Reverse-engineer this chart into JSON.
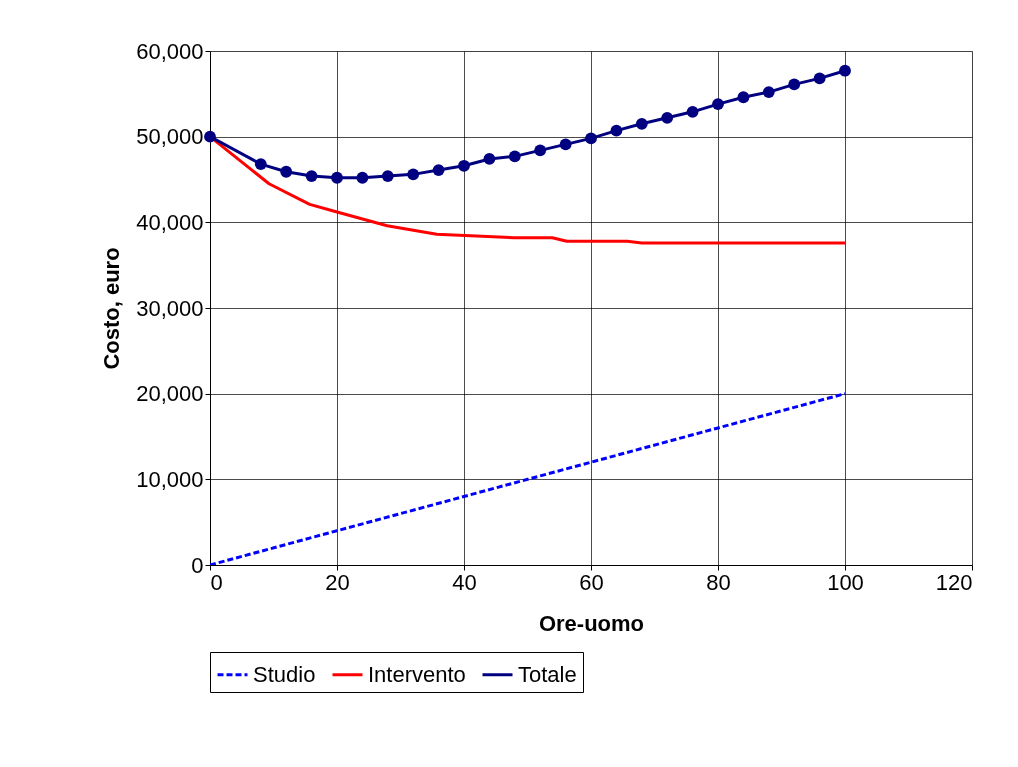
{
  "chart_data": {
    "type": "line",
    "xlabel": "Ore-uomo",
    "ylabel": "Costo, euro",
    "xlim": [
      0,
      120
    ],
    "xticks": [
      0,
      20,
      40,
      60,
      80,
      100,
      120
    ],
    "ylim": [
      0,
      60000
    ],
    "yticks": [
      {
        "value": 0,
        "label": "0"
      },
      {
        "value": 10000,
        "label": "10,000"
      },
      {
        "value": 20000,
        "label": "20,000"
      },
      {
        "value": 30000,
        "label": "30,000"
      },
      {
        "value": 40000,
        "label": "40,000"
      },
      {
        "value": 50000,
        "label": "50,000"
      },
      {
        "value": 60000,
        "label": "60,000"
      }
    ],
    "grid": true,
    "legend": "bottom",
    "series": [
      {
        "name": "Studio",
        "color": "#0000ff",
        "line_style": "dashed",
        "marker": "none",
        "x": [
          0,
          20,
          40,
          60,
          80,
          100
        ],
        "values": [
          0,
          4000,
          8000,
          12000,
          16000,
          20000
        ]
      },
      {
        "name": "Intervento",
        "color": "#ff0000",
        "line_style": "solid",
        "marker": "none",
        "x": [
          0,
          9.3,
          15.7,
          20,
          27.9,
          35.7,
          47.9,
          53.9,
          56.2,
          65.7,
          68,
          100
        ],
        "values": [
          50000,
          44500,
          42100,
          41200,
          39600,
          38600,
          38200,
          38200,
          37800,
          37800,
          37600,
          37600
        ]
      },
      {
        "name": "Totale",
        "color": "#000080",
        "line_style": "solid",
        "marker": "circle",
        "x": [
          0,
          8,
          12,
          16,
          20,
          24,
          28,
          32,
          36,
          40,
          44,
          48,
          52,
          56,
          60,
          64,
          68,
          72,
          76,
          80,
          84,
          88,
          92,
          96,
          100
        ],
        "values": [
          50000,
          46800,
          45900,
          45400,
          45200,
          45200,
          45400,
          45600,
          46100,
          46600,
          47400,
          47700,
          48400,
          49100,
          49800,
          50700,
          51500,
          52200,
          52900,
          53800,
          54600,
          55200,
          56100,
          56800,
          57700
        ]
      }
    ]
  }
}
